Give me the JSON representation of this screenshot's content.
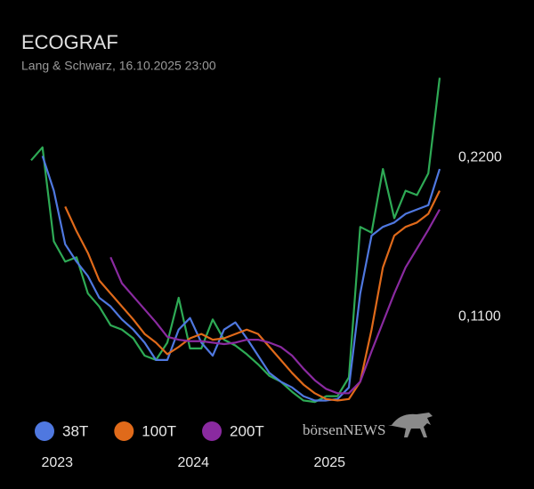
{
  "chart_data": {
    "type": "line",
    "title": "ECOGRAF",
    "subtitle": "Lang & Schwarz, 16.10.2025 23:00",
    "brand": "börsenNEWS",
    "categories": [
      null,
      null,
      null,
      "2023",
      null,
      null,
      null,
      null,
      null,
      null,
      null,
      null,
      null,
      null,
      null,
      "2024",
      null,
      null,
      null,
      null,
      null,
      null,
      null,
      null,
      null,
      null,
      null,
      "2025",
      null,
      null,
      null,
      null,
      null,
      null,
      null,
      null,
      null
    ],
    "ylim": [
      0.04,
      0.28
    ],
    "yticks": [
      {
        "value": 0.11,
        "label": "0,1100"
      },
      {
        "value": 0.22,
        "label": "0,2200"
      }
    ],
    "series": [
      {
        "color": "#2eaa55",
        "values": [
          0.218,
          0.227,
          0.162,
          0.148,
          0.151,
          0.126,
          0.117,
          0.104,
          0.101,
          0.095,
          0.083,
          0.08,
          0.092,
          0.123,
          0.088,
          0.088,
          0.108,
          0.094,
          0.09,
          0.084,
          0.077,
          0.069,
          0.065,
          0.058,
          0.052,
          0.051,
          0.055,
          0.055,
          0.068,
          0.172,
          0.168,
          0.212,
          0.178,
          0.197,
          0.194,
          0.209,
          0.275
        ]
      },
      {
        "name": "38T",
        "color": "#4f78e0",
        "values": [
          null,
          0.221,
          0.197,
          0.16,
          0.148,
          0.138,
          0.123,
          0.117,
          0.108,
          0.101,
          0.092,
          0.08,
          0.08,
          0.101,
          0.109,
          0.092,
          0.083,
          0.101,
          0.106,
          0.095,
          0.083,
          0.071,
          0.065,
          0.061,
          0.055,
          0.052,
          0.052,
          0.053,
          0.061,
          0.126,
          0.166,
          0.172,
          0.175,
          0.181,
          0.184,
          0.187,
          0.212
        ]
      },
      {
        "name": "100T",
        "color": "#e06a1a",
        "values": [
          null,
          null,
          null,
          0.186,
          0.169,
          0.154,
          0.135,
          0.126,
          0.117,
          0.108,
          0.098,
          0.092,
          0.084,
          0.089,
          0.095,
          0.098,
          0.094,
          0.095,
          0.098,
          0.101,
          0.098,
          0.089,
          0.08,
          0.071,
          0.063,
          0.057,
          0.053,
          0.052,
          0.053,
          0.065,
          0.101,
          0.144,
          0.166,
          0.172,
          0.175,
          0.181,
          0.197
        ]
      },
      {
        "name": "200T",
        "color": "#8a2aa0",
        "values": [
          null,
          null,
          null,
          null,
          null,
          null,
          null,
          0.151,
          0.133,
          0.124,
          0.115,
          0.106,
          0.096,
          0.094,
          0.093,
          0.093,
          0.092,
          0.091,
          0.092,
          0.094,
          0.094,
          0.092,
          0.089,
          0.083,
          0.074,
          0.066,
          0.06,
          0.057,
          0.057,
          0.065,
          0.086,
          0.106,
          0.126,
          0.144,
          0.157,
          0.17,
          0.184
        ]
      }
    ]
  }
}
